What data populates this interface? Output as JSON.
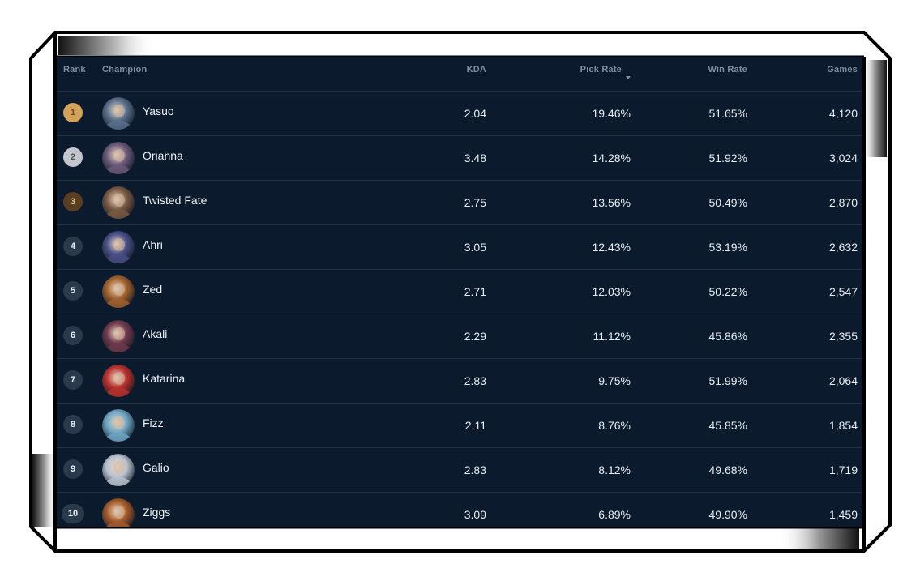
{
  "table": {
    "headers": {
      "rank": "Rank",
      "champion": "Champion",
      "kda": "KDA",
      "pick_rate": "Pick Rate",
      "win_rate": "Win Rate",
      "games": "Games"
    },
    "sorted_by": "pick_rate",
    "rows": [
      {
        "rank": "1",
        "name": "Yasuo",
        "kda": "2.04",
        "pick_rate": "19.46%",
        "win_rate": "51.65%",
        "games": "4,120",
        "avatar_color": "#5a6f8c"
      },
      {
        "rank": "2",
        "name": "Orianna",
        "kda": "3.48",
        "pick_rate": "14.28%",
        "win_rate": "51.92%",
        "games": "3,024",
        "avatar_color": "#6b5a7a"
      },
      {
        "rank": "3",
        "name": "Twisted Fate",
        "kda": "2.75",
        "pick_rate": "13.56%",
        "win_rate": "50.49%",
        "games": "2,870",
        "avatar_color": "#7a5a44"
      },
      {
        "rank": "4",
        "name": "Ahri",
        "kda": "3.05",
        "pick_rate": "12.43%",
        "win_rate": "53.19%",
        "games": "2,632",
        "avatar_color": "#4a4f86"
      },
      {
        "rank": "5",
        "name": "Zed",
        "kda": "2.71",
        "pick_rate": "12.03%",
        "win_rate": "50.22%",
        "games": "2,547",
        "avatar_color": "#a0612e"
      },
      {
        "rank": "6",
        "name": "Akali",
        "kda": "2.29",
        "pick_rate": "11.12%",
        "win_rate": "45.86%",
        "games": "2,355",
        "avatar_color": "#6e3a4c"
      },
      {
        "rank": "7",
        "name": "Katarina",
        "kda": "2.83",
        "pick_rate": "9.75%",
        "win_rate": "51.99%",
        "games": "2,064",
        "avatar_color": "#b8322e"
      },
      {
        "rank": "8",
        "name": "Fizz",
        "kda": "2.11",
        "pick_rate": "8.76%",
        "win_rate": "45.85%",
        "games": "1,854",
        "avatar_color": "#6fa6c4"
      },
      {
        "rank": "9",
        "name": "Galio",
        "kda": "2.83",
        "pick_rate": "8.12%",
        "win_rate": "49.68%",
        "games": "1,719",
        "avatar_color": "#b9c3cf"
      },
      {
        "rank": "10",
        "name": "Ziggs",
        "kda": "3.09",
        "pick_rate": "6.89%",
        "win_rate": "49.90%",
        "games": "1,459",
        "avatar_color": "#a55a2a"
      }
    ]
  },
  "colors": {
    "panel_bg": "#0b1a2c",
    "divider": "#1e3146",
    "header_text": "#7e8da0",
    "body_text": "#e8edf3",
    "rank_gold": "#d3a25a",
    "rank_silver": "#c3c7cc",
    "rank_bronze": "#5a3e22",
    "rank_default": "#2a3a4d"
  }
}
